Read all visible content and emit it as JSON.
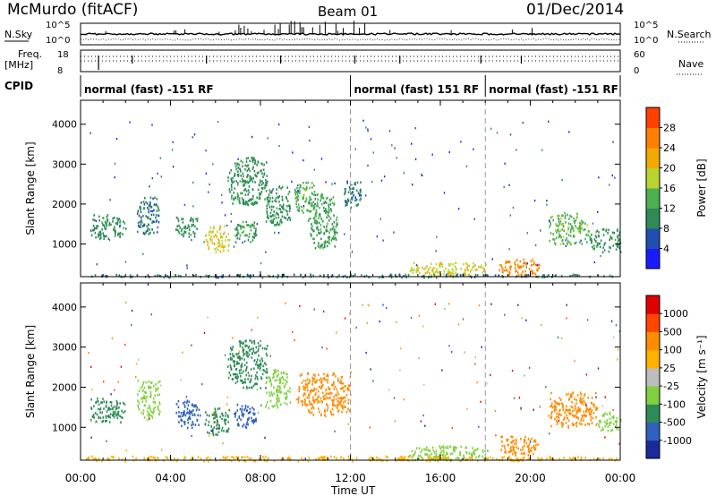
{
  "header": {
    "station": "McMurdo (fitACF)",
    "beam": "Beam 01",
    "date": "01/Dec/2014"
  },
  "strip_labels": {
    "nsky": "N.Sky",
    "nsearch": "N.Search",
    "freq_line1": "Freq.",
    "freq_line2": "[MHz]",
    "nave": "Nave",
    "cpid": "CPID",
    "nsky_ticks": [
      "10^5",
      "10^0"
    ],
    "nsearch_ticks": [
      "10^5",
      "10^0"
    ],
    "freq_ticks": [
      "18",
      "8"
    ],
    "nave_ticks": [
      "60",
      "0"
    ]
  },
  "cpid_segments": [
    {
      "label": "normal (fast) -151 RF",
      "start_hour": 0
    },
    {
      "label": "normal (fast) 151 RF",
      "start_hour": 12
    },
    {
      "label": "normal (fast) -151 RF",
      "start_hour": 18
    }
  ],
  "colors": {
    "power_scale": [
      "#1a1aff",
      "#1f4fb0",
      "#2e8b57",
      "#4caf50",
      "#b8d430",
      "#f2a900",
      "#ff8000",
      "#ff4000",
      "#e00000"
    ],
    "velocity_scale": [
      "#e00000",
      "#ff4500",
      "#ff8c00",
      "#ffb000",
      "#bdbdbd",
      "#80d040",
      "#2e8b57",
      "#3060c0",
      "#1a2a9a"
    ]
  },
  "chart_data": [
    {
      "type": "heatmap",
      "name": "Power",
      "xlabel": "Time UT",
      "ylabel": "Slant Range [km]",
      "x_ticks": [
        "00:00",
        "04:00",
        "08:00",
        "12:00",
        "16:00",
        "20:00",
        "00:00"
      ],
      "y_ticks": [
        "1000",
        "2000",
        "3000",
        "4000"
      ],
      "xlim_hours": [
        0,
        24
      ],
      "ylim_km": [
        180,
        4600
      ],
      "colorbar_label": "Power [dB]",
      "colorbar_ticks": [
        "4",
        "8",
        "12",
        "16",
        "20",
        "24",
        "28"
      ],
      "colorbar_range": [
        0,
        30
      ],
      "vertical_markers_hours": [
        12,
        18
      ],
      "regions": [
        {
          "t": [
            0.4,
            2.0
          ],
          "r": [
            1150,
            1750
          ],
          "level": 8
        },
        {
          "t": [
            2.5,
            3.5
          ],
          "r": [
            1250,
            2200
          ],
          "level": 6
        },
        {
          "t": [
            4.2,
            5.3
          ],
          "r": [
            1200,
            1700
          ],
          "level": 8
        },
        {
          "t": [
            5.5,
            6.6
          ],
          "r": [
            800,
            1500
          ],
          "level": 16
        },
        {
          "t": [
            6.5,
            8.3
          ],
          "r": [
            2000,
            3200
          ],
          "level": 8
        },
        {
          "t": [
            6.8,
            7.8
          ],
          "r": [
            1000,
            1600
          ],
          "level": 10
        },
        {
          "t": [
            8.2,
            9.3
          ],
          "r": [
            1500,
            2500
          ],
          "level": 8
        },
        {
          "t": [
            9.5,
            10.4
          ],
          "r": [
            1800,
            2600
          ],
          "level": 12
        },
        {
          "t": [
            10.1,
            11.4
          ],
          "r": [
            900,
            2300
          ],
          "level": 10
        },
        {
          "t": [
            11.7,
            12.5
          ],
          "r": [
            1900,
            2600
          ],
          "level": 6
        },
        {
          "t": [
            14.6,
            18.0
          ],
          "r": [
            200,
            560
          ],
          "level": 16
        },
        {
          "t": [
            18.6,
            20.4
          ],
          "r": [
            200,
            650
          ],
          "level": 22
        },
        {
          "t": [
            20.8,
            22.6
          ],
          "r": [
            1000,
            1800
          ],
          "level": 12
        },
        {
          "t": [
            22.6,
            24.0
          ],
          "r": [
            800,
            1400
          ],
          "level": 8
        },
        {
          "t": [
            0.0,
            24.0
          ],
          "r": [
            180,
            260
          ],
          "level": 6
        }
      ]
    },
    {
      "type": "heatmap",
      "name": "Velocity",
      "xlabel": "Time UT",
      "ylabel": "Slant Range [km]",
      "x_ticks": [
        "00:00",
        "04:00",
        "08:00",
        "12:00",
        "16:00",
        "20:00",
        "00:00"
      ],
      "y_ticks": [
        "1000",
        "2000",
        "3000",
        "4000"
      ],
      "xlim_hours": [
        0,
        24
      ],
      "ylim_km": [
        180,
        4600
      ],
      "colorbar_label": "Velocity [m s⁻¹]",
      "colorbar_ticks": [
        "1000",
        "500",
        "100",
        "25",
        "-25",
        "-100",
        "-500",
        "-1000"
      ],
      "vertical_markers_hours": [
        12,
        18
      ],
      "regions": [
        {
          "t": [
            0.4,
            2.0
          ],
          "r": [
            1150,
            1750
          ],
          "level": 6
        },
        {
          "t": [
            2.5,
            3.5
          ],
          "r": [
            1250,
            2200
          ],
          "level": 5
        },
        {
          "t": [
            4.2,
            5.3
          ],
          "r": [
            1000,
            1700
          ],
          "level": 7
        },
        {
          "t": [
            5.5,
            6.6
          ],
          "r": [
            800,
            1500
          ],
          "level": 6
        },
        {
          "t": [
            6.5,
            8.3
          ],
          "r": [
            2000,
            3200
          ],
          "level": 6
        },
        {
          "t": [
            6.8,
            7.8
          ],
          "r": [
            1000,
            1600
          ],
          "level": 7
        },
        {
          "t": [
            8.2,
            9.3
          ],
          "r": [
            1500,
            2500
          ],
          "level": 5
        },
        {
          "t": [
            9.6,
            12.0
          ],
          "r": [
            1300,
            2400
          ],
          "level": 2
        },
        {
          "t": [
            14.6,
            18.0
          ],
          "r": [
            200,
            560
          ],
          "level": 5
        },
        {
          "t": [
            18.6,
            20.4
          ],
          "r": [
            300,
            800
          ],
          "level": 2
        },
        {
          "t": [
            20.8,
            23.0
          ],
          "r": [
            1000,
            1900
          ],
          "level": 2
        },
        {
          "t": [
            23.0,
            24.0
          ],
          "r": [
            900,
            1400
          ],
          "level": 5
        },
        {
          "t": [
            0.0,
            24.0
          ],
          "r": [
            180,
            300
          ],
          "level": 3
        }
      ]
    }
  ]
}
